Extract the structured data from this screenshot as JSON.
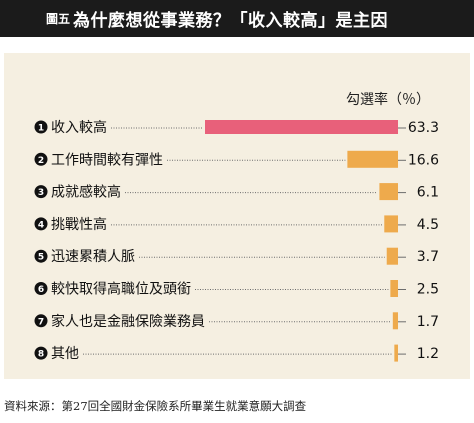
{
  "header": {
    "figure_label": "圖五",
    "title": "為什麼想從事業務？「收入較高」是主因"
  },
  "source": "資料來源：第27回全國財金保險系所畢業生就業意願大調查",
  "colors": {
    "header_bg": "#1b1b1b",
    "panel_bg": "#f5efe1",
    "top_bar": "#e8607a",
    "bar": "#eeaa4c",
    "leader": "#6d6d6d"
  },
  "chart_data": {
    "type": "bar",
    "orientation": "horizontal",
    "unit_label": "勾選率（％）",
    "categories": [
      "收入較高",
      "工作時間較有彈性",
      "成就感較高",
      "挑戰性高",
      "迅速累積人脈",
      "較快取得高職位及頭銜",
      "家人也是金融保險業務員",
      "其他"
    ],
    "markers": [
      "1",
      "2",
      "3",
      "4",
      "5",
      "6",
      "7",
      "8"
    ],
    "values": [
      63.3,
      16.6,
      6.1,
      4.5,
      3.7,
      2.5,
      1.7,
      1.2
    ],
    "value_labels": [
      "63.3",
      "16.6",
      "6.1",
      "4.5",
      "3.7",
      "2.5",
      "1.7",
      "1.2"
    ],
    "xlim": [
      0,
      63.3
    ],
    "grid": false,
    "legend": "none"
  }
}
